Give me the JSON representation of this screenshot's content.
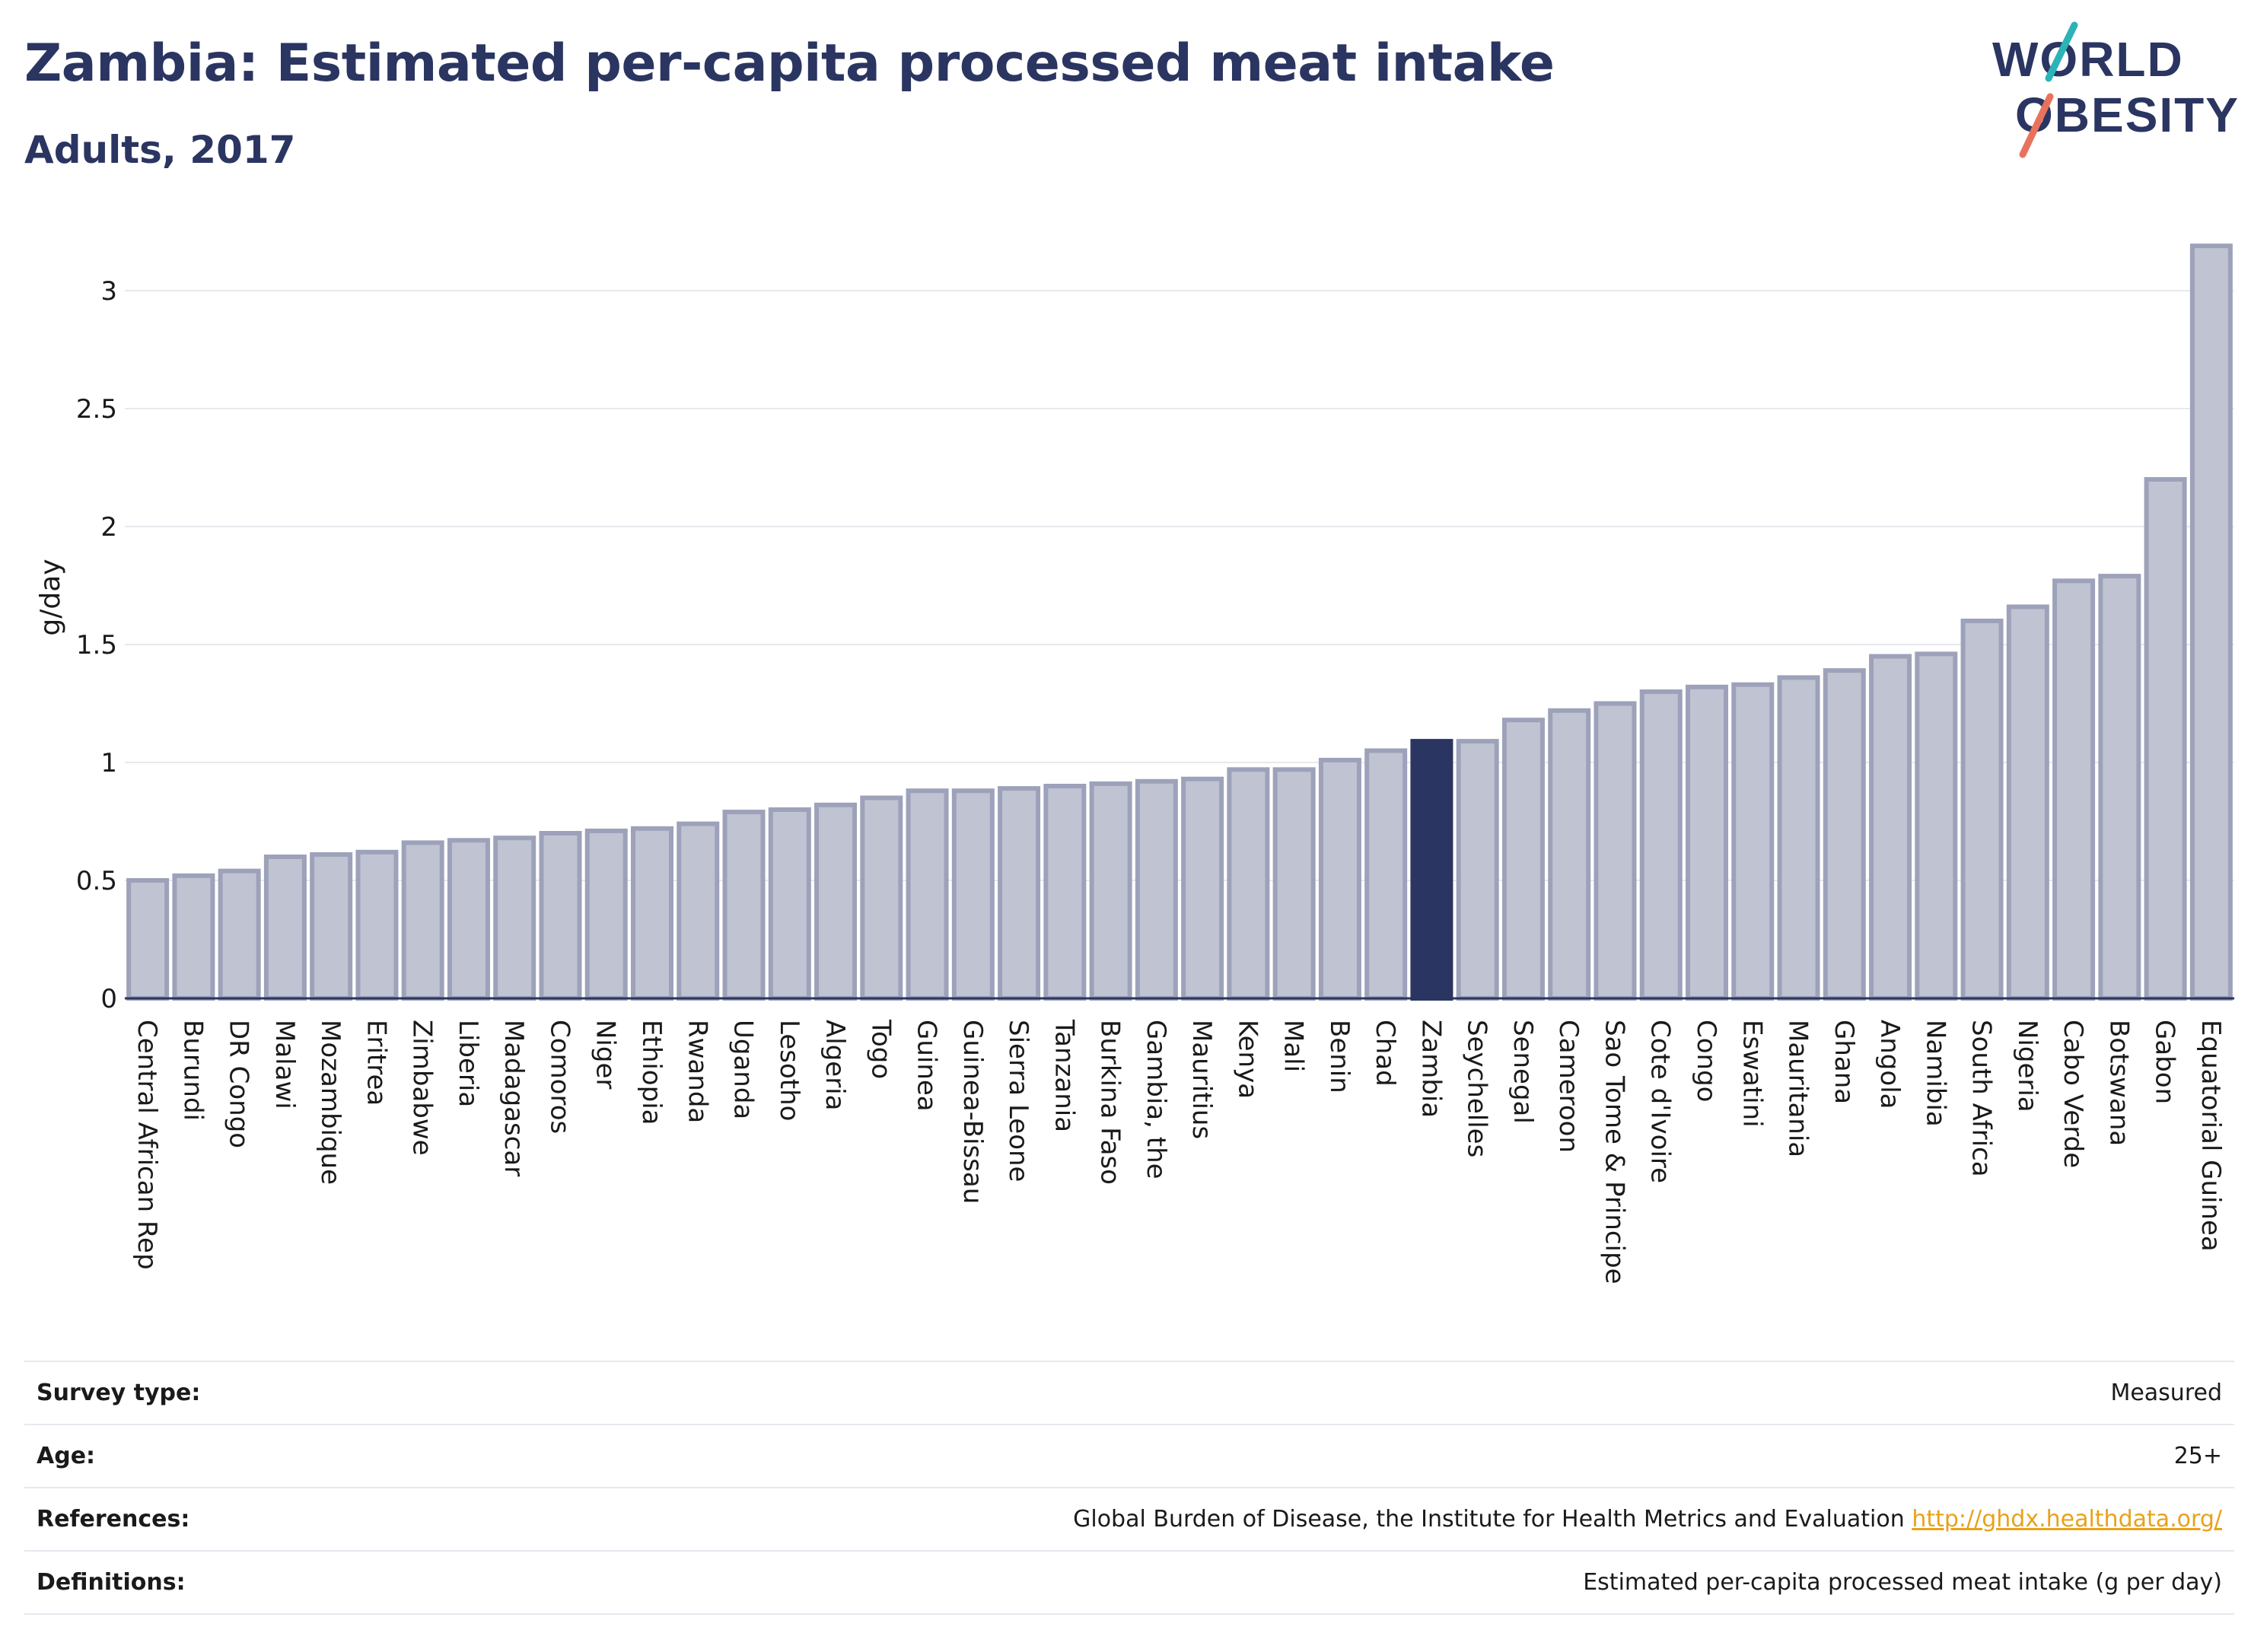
{
  "header": {
    "title": "Zambia: Estimated per-capita processed meat intake",
    "subtitle": "Adults, 2017"
  },
  "logo": {
    "line1": "WORLD",
    "line2": "OBESITY"
  },
  "colors": {
    "highlight": "#2b3561",
    "bar_fill": "#c0c3d1",
    "bar_stroke": "#9da2ba",
    "logo_teal": "#2bb3b8",
    "logo_coral": "#e8735d",
    "link": "#e8a21a"
  },
  "chart_data": {
    "type": "bar",
    "ylabel": "g/day",
    "ylim": [
      0,
      3.2
    ],
    "yticks": [
      0,
      0.5,
      1,
      1.5,
      2,
      2.5,
      3
    ],
    "highlight": "Zambia",
    "grid": true,
    "categories": [
      "Central African Rep",
      "Burundi",
      "DR Congo",
      "Malawi",
      "Mozambique",
      "Eritrea",
      "Zimbabwe",
      "Liberia",
      "Madagascar",
      "Comoros",
      "Niger",
      "Ethiopia",
      "Rwanda",
      "Uganda",
      "Lesotho",
      "Algeria",
      "Togo",
      "Guinea",
      "Guinea-Bissau",
      "Sierra Leone",
      "Tanzania",
      "Burkina Faso",
      "Gambia, the",
      "Mauritius",
      "Kenya",
      "Mali",
      "Benin",
      "Chad",
      "Zambia",
      "Seychelles",
      "Senegal",
      "Cameroon",
      "Sao Tome & Principe",
      "Cote d'Ivoire",
      "Congo",
      "Eswatini",
      "Mauritania",
      "Ghana",
      "Angola",
      "Namibia",
      "South Africa",
      "Nigeria",
      "Cabo Verde",
      "Botswana",
      "Gabon",
      "Equatorial Guinea"
    ],
    "values": [
      0.5,
      0.52,
      0.54,
      0.6,
      0.61,
      0.62,
      0.66,
      0.67,
      0.68,
      0.7,
      0.71,
      0.72,
      0.74,
      0.79,
      0.8,
      0.82,
      0.85,
      0.88,
      0.88,
      0.89,
      0.9,
      0.91,
      0.92,
      0.93,
      0.97,
      0.97,
      1.01,
      1.05,
      1.09,
      1.09,
      1.18,
      1.22,
      1.25,
      1.3,
      1.32,
      1.33,
      1.36,
      1.39,
      1.45,
      1.46,
      1.6,
      1.66,
      1.77,
      1.79,
      2.2,
      3.19
    ]
  },
  "meta": [
    {
      "label": "Survey type:",
      "value": "Measured"
    },
    {
      "label": "Age:",
      "value": "25+"
    },
    {
      "label": "References:",
      "value": "Global Burden of Disease, the Institute for Health Metrics and Evaluation",
      "link": "http://ghdx.healthdata.org/"
    },
    {
      "label": "Definitions:",
      "value": "Estimated per-capita processed meat intake (g per day)"
    }
  ]
}
